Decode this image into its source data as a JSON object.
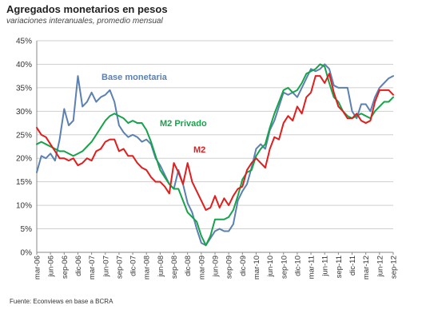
{
  "title": "Agregados monetarios  en pesos",
  "subtitle": "variaciones interanuales, promedio mensual",
  "source": "Fuente: Econviews en base a BCRA",
  "chart_data": {
    "type": "line",
    "ylim": [
      0,
      45
    ],
    "yticks": [
      "0%",
      "5%",
      "10%",
      "15%",
      "20%",
      "25%",
      "30%",
      "35%",
      "40%",
      "45%"
    ],
    "grid": true,
    "x": [
      "mar-06",
      "abr-06",
      "may-06",
      "jun-06",
      "jul-06",
      "ago-06",
      "sep-06",
      "oct-06",
      "nov-06",
      "dic-06",
      "ene-07",
      "feb-07",
      "mar-07",
      "abr-07",
      "may-07",
      "jun-07",
      "jul-07",
      "ago-07",
      "sep-07",
      "oct-07",
      "nov-07",
      "dic-07",
      "ene-08",
      "feb-08",
      "mar-08",
      "abr-08",
      "may-08",
      "jun-08",
      "jul-08",
      "ago-08",
      "sep-08",
      "oct-08",
      "nov-08",
      "dic-08",
      "ene-09",
      "feb-09",
      "mar-09",
      "abr-09",
      "may-09",
      "jun-09",
      "jul-09",
      "ago-09",
      "sep-09",
      "oct-09",
      "nov-09",
      "dic-09",
      "ene-10",
      "feb-10",
      "mar-10",
      "abr-10",
      "may-10",
      "jun-10",
      "jul-10",
      "ago-10",
      "sep-10",
      "oct-10",
      "nov-10",
      "dic-10",
      "ene-11",
      "feb-11",
      "mar-11",
      "abr-11",
      "may-11",
      "jun-11",
      "jul-11",
      "ago-11",
      "sep-11",
      "oct-11",
      "nov-11",
      "dic-11",
      "ene-12",
      "feb-12",
      "mar-12",
      "abr-12",
      "may-12",
      "jun-12",
      "jul-12",
      "ago-12",
      "sep-12"
    ],
    "xtick_labels": [
      "mar-06",
      "jun-06",
      "sep-06",
      "dic-06",
      "mar-07",
      "jun-07",
      "sep-07",
      "dic-07",
      "mar-08",
      "jun-08",
      "sep-08",
      "dic-08",
      "mar-09",
      "jun-09",
      "sep-09",
      "dic-09",
      "mar-10",
      "jun-10",
      "sep-10",
      "dic-10",
      "mar-11",
      "jun-11",
      "sep-11",
      "dic-11",
      "mar-12",
      "jun-12",
      "sep-12"
    ],
    "series": [
      {
        "name": "Base monetaria",
        "color": "#5b80b2",
        "values": [
          17,
          20.5,
          20,
          21,
          19.5,
          24,
          30.5,
          27,
          28,
          37.5,
          31,
          32,
          34,
          32,
          33,
          33.5,
          34.5,
          32,
          27,
          25.5,
          24.5,
          25,
          24.5,
          23.5,
          24,
          23,
          20,
          18.5,
          16.5,
          14.5,
          13.5,
          17.5,
          14.5,
          10.5,
          8.5,
          5,
          2,
          1.5,
          3,
          4.5,
          5,
          4.5,
          4.5,
          6,
          11,
          13,
          14.5,
          18,
          22,
          23,
          22,
          26,
          28,
          31,
          34,
          33.5,
          34,
          33,
          35,
          37,
          39,
          38.5,
          39,
          40,
          39,
          35.5,
          35,
          35,
          35,
          30,
          28.5,
          31.5,
          31.5,
          30,
          33,
          35,
          36,
          37,
          37.5
        ]
      },
      {
        "name": "M2 Privado",
        "color": "#16a34a",
        "values": [
          23,
          23.5,
          23,
          22.5,
          22,
          21.5,
          21.5,
          21,
          20.5,
          21,
          21.5,
          22.5,
          23.5,
          25,
          26.5,
          28,
          29,
          29.5,
          29,
          28.5,
          27.5,
          28,
          27.5,
          27.5,
          26,
          23.5,
          20.5,
          17.5,
          16,
          14.5,
          13.5,
          13.5,
          11,
          8.5,
          7.5,
          6.5,
          3.5,
          1.5,
          3.5,
          7,
          7,
          7,
          7.5,
          9,
          12,
          15.5,
          17,
          17.5,
          20.5,
          22,
          23,
          26.5,
          29.5,
          32,
          34.5,
          35,
          34,
          34.5,
          36,
          38,
          38.5,
          39,
          40,
          39.5,
          36,
          33,
          32,
          30,
          29,
          28.5,
          29,
          29.5,
          29,
          28.5,
          30,
          31,
          32,
          32,
          33
        ]
      },
      {
        "name": "M2",
        "color": "#e11d1d",
        "values": [
          26.5,
          25,
          24.5,
          23,
          21.5,
          20,
          20,
          19.5,
          20,
          18.5,
          19,
          20,
          19.5,
          21.5,
          22,
          23.5,
          24,
          24,
          21.5,
          22,
          20.5,
          20.5,
          19,
          18,
          17.5,
          16,
          15,
          15,
          14,
          12.5,
          19,
          17,
          14.5,
          19,
          15,
          13,
          11,
          9,
          9.5,
          12,
          9.5,
          11.5,
          10,
          12,
          13.5,
          14,
          17.5,
          19,
          20,
          19,
          18,
          22,
          24.5,
          24,
          27.5,
          29,
          28,
          31,
          29.5,
          33,
          34,
          37.5,
          37.5,
          36,
          38,
          34,
          31,
          30,
          28.5,
          28.5,
          29.5,
          28,
          27.5,
          28,
          32,
          34.5,
          34.5,
          34.5,
          33.5
        ]
      }
    ],
    "labels": [
      {
        "text": "Base monetaria",
        "series": "Base monetaria"
      },
      {
        "text": "M2 Privado",
        "series": "M2 Privado"
      },
      {
        "text": "M2",
        "series": "M2"
      }
    ]
  }
}
